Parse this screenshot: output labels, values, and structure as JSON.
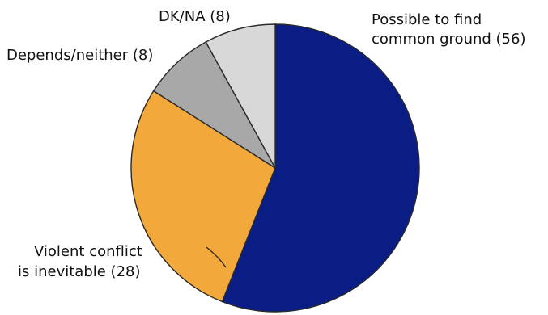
{
  "chart_data": {
    "type": "pie",
    "title": "",
    "start": "12 o'clock",
    "direction": "clockwise",
    "slices": [
      {
        "label_lines": [
          "Possible to find",
          "common ground (56)"
        ],
        "value": 56,
        "color": "#0a1d84"
      },
      {
        "label_lines": [
          "Violent conflict",
          "is inevitable (28)"
        ],
        "value": 28,
        "color": "#f2a83a"
      },
      {
        "label_lines": [
          "Depends/neither (8)"
        ],
        "value": 8,
        "color": "#a8a8a8"
      },
      {
        "label_lines": [
          "DK/NA (8)"
        ],
        "value": 8,
        "color": "#d8d8d8"
      }
    ],
    "legend": "none"
  }
}
